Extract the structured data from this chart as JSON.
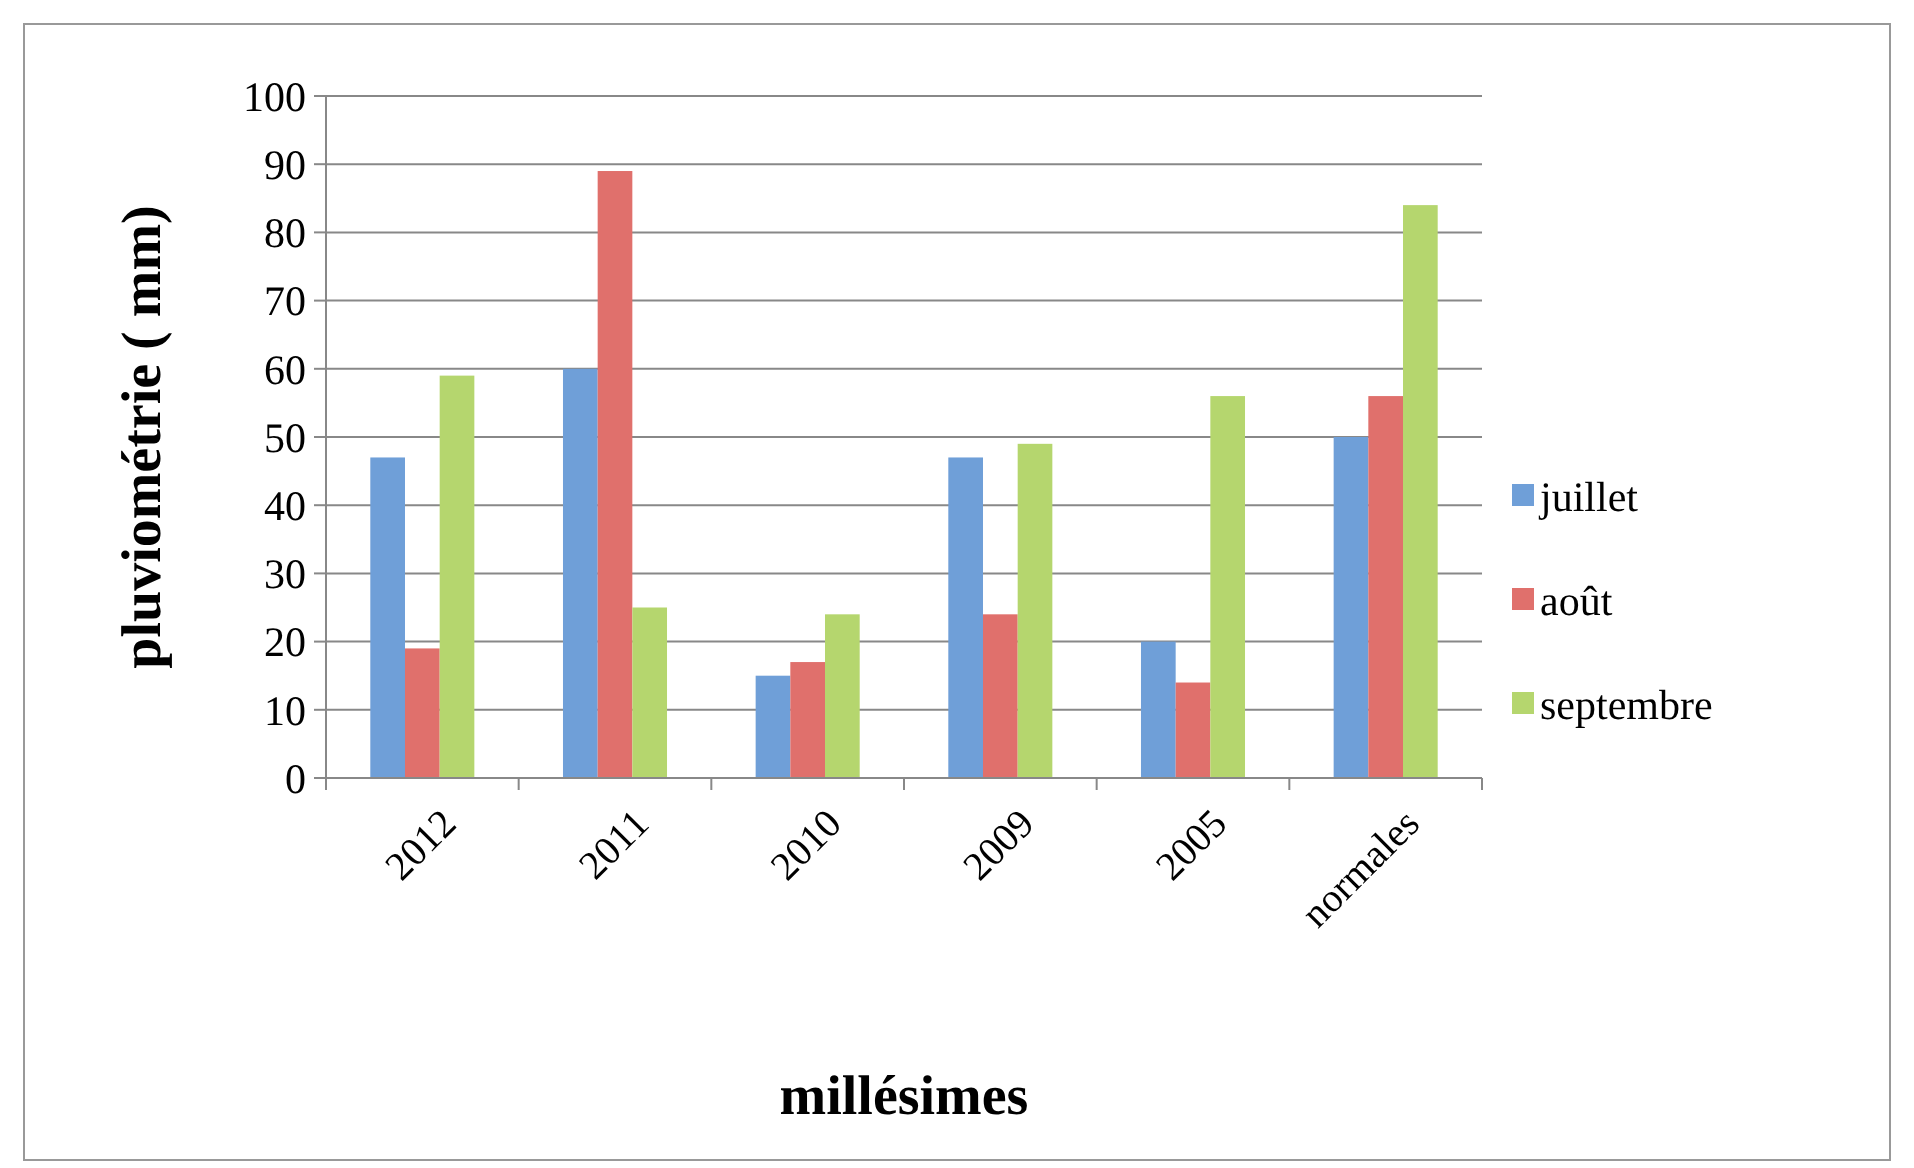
{
  "chart_data": {
    "type": "bar",
    "xlabel": "millésimes",
    "ylabel": "pluviométrie ( mm)",
    "categories": [
      "2012",
      "2011",
      "2010",
      "2009",
      "2005",
      "normales"
    ],
    "series": [
      {
        "name": "juillet",
        "color": "#6f9fd8",
        "values": [
          47,
          60,
          15,
          47,
          20,
          50
        ]
      },
      {
        "name": "août",
        "color": "#e0706c",
        "values": [
          19,
          89,
          17,
          24,
          14,
          56
        ]
      },
      {
        "name": "septembre",
        "color": "#b5d66e",
        "values": [
          59,
          25,
          24,
          49,
          56,
          84
        ]
      }
    ],
    "ylim": [
      0,
      100
    ],
    "yticks": [
      0,
      10,
      20,
      30,
      40,
      50,
      60,
      70,
      80,
      90,
      100
    ],
    "grid": "y",
    "legend": "right"
  }
}
